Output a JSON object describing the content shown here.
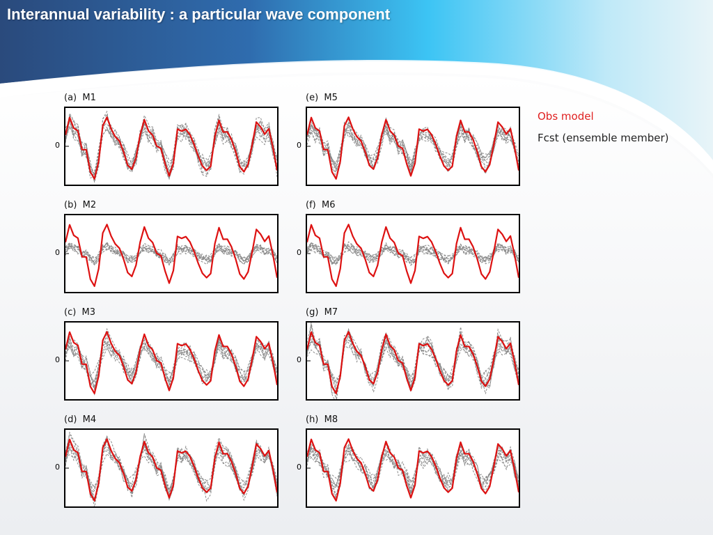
{
  "slide": {
    "title": "Interannual variability : a particular wave component"
  },
  "legend": {
    "obs_label": "Obs model",
    "fcst_label": "Fcst (ensemble member)"
  },
  "colors": {
    "obs": "#dd1111",
    "fcst": "#8a8a8a",
    "header_dark": "#2d4f80",
    "header_light": "#3cc4f4"
  },
  "chart_data": [
    {
      "type": "line",
      "title": "(a)  M1",
      "ytick": "0",
      "ensemble_spread": 0.75,
      "series": [
        {
          "name": "Obs model"
        },
        {
          "name": "Fcst (ensemble member)"
        }
      ]
    },
    {
      "type": "line",
      "title": "(b)  M2",
      "ytick": "0",
      "ensemble_spread": 0.25,
      "series": [
        {
          "name": "Obs model"
        },
        {
          "name": "Fcst (ensemble member)"
        }
      ]
    },
    {
      "type": "line",
      "title": "(c)  M3",
      "ytick": "0",
      "ensemble_spread": 0.45,
      "series": [
        {
          "name": "Obs model"
        },
        {
          "name": "Fcst (ensemble member)"
        }
      ]
    },
    {
      "type": "line",
      "title": "(d)  M4",
      "ytick": "0",
      "ensemble_spread": 0.7,
      "series": [
        {
          "name": "Obs model"
        },
        {
          "name": "Fcst (ensemble member)"
        }
      ]
    },
    {
      "type": "line",
      "title": "(e)  M5",
      "ytick": "0",
      "ensemble_spread": 0.55,
      "series": [
        {
          "name": "Obs model"
        },
        {
          "name": "Fcst (ensemble member)"
        }
      ]
    },
    {
      "type": "line",
      "title": "(f)  M6",
      "ytick": "0",
      "ensemble_spread": 0.2,
      "series": [
        {
          "name": "Obs model"
        },
        {
          "name": "Fcst (ensemble member)"
        }
      ]
    },
    {
      "type": "line",
      "title": "(g)  M7",
      "ytick": "0",
      "ensemble_spread": 0.65,
      "series": [
        {
          "name": "Obs model"
        },
        {
          "name": "Fcst (ensemble member)"
        }
      ]
    },
    {
      "type": "line",
      "title": "(h)  M8",
      "ytick": "0",
      "ensemble_spread": 0.45,
      "series": [
        {
          "name": "Obs model"
        },
        {
          "name": "Fcst (ensemble member)"
        }
      ]
    }
  ]
}
